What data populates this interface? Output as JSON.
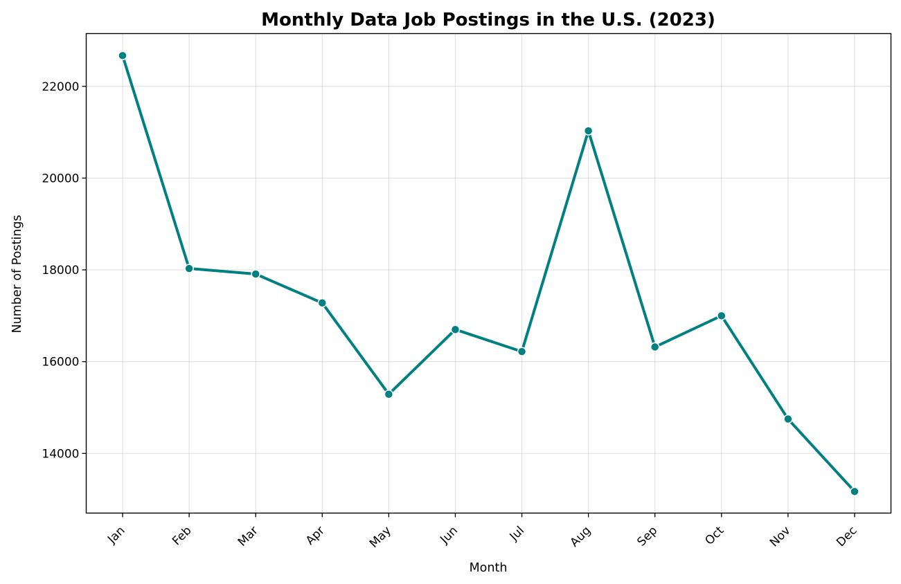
{
  "chart_data": {
    "type": "line",
    "title": "Monthly Data Job Postings in the U.S. (2023)",
    "xlabel": "Month",
    "ylabel": "Number of Postings",
    "categories": [
      "Jan",
      "Feb",
      "Mar",
      "Apr",
      "May",
      "Jun",
      "Jul",
      "Aug",
      "Sep",
      "Oct",
      "Nov",
      "Dec"
    ],
    "series": [
      {
        "values": [
          22670,
          18030,
          17910,
          17280,
          15290,
          16700,
          16220,
          21030,
          16320,
          17000,
          14750,
          13170
        ]
      }
    ],
    "yticks": [
      14000,
      16000,
      18000,
      20000,
      22000
    ],
    "ylim": [
      12700,
      23150
    ],
    "grid": true,
    "line_color": "#008080",
    "marker": "circle",
    "x_tick_rotation": 45
  }
}
